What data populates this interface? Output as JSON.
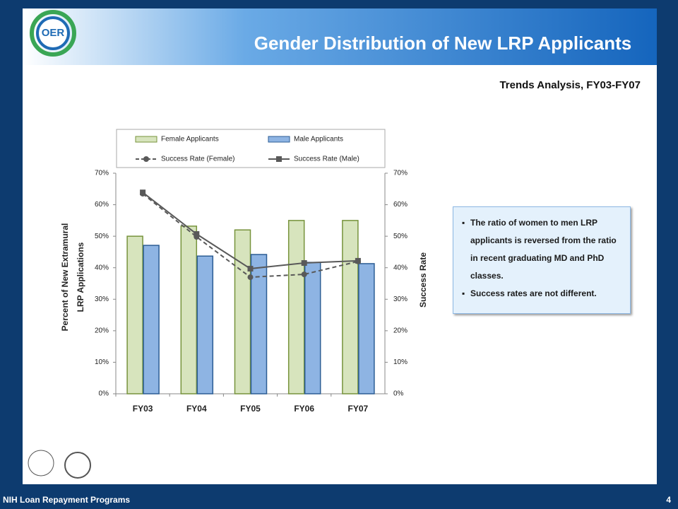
{
  "slide_title": "Gender Distribution of New LRP Applicants",
  "logo_text": "OER",
  "subtitle": "Trends Analysis,  FY03-FY07",
  "bullets": [
    "The ratio of women to men LRP applicants is reversed from the ratio in recent graduating MD and PhD classes.",
    "Success rates are not different."
  ],
  "footer": "NIH Loan Repayment Programs",
  "page_number": "4",
  "chart_data": {
    "type": "bar",
    "categories": [
      "FY03",
      "FY04",
      "FY05",
      "FY06",
      "FY07"
    ],
    "series": [
      {
        "name": "Female Applicants",
        "type": "bar",
        "color": "#d7e4bd",
        "edge": "#77933c",
        "values": [
          50,
          53.2,
          52,
          55,
          55
        ]
      },
      {
        "name": "Male Applicants",
        "type": "bar",
        "color": "#8eb4e3",
        "edge": "#2c5d94",
        "values": [
          47.1,
          43.7,
          44.2,
          41.7,
          41.3
        ]
      },
      {
        "name": "Success Rate (Female)",
        "type": "line",
        "axis": "y2",
        "color": "#595959",
        "dashed": true,
        "marker": "circle",
        "values": [
          63.5,
          49.8,
          37,
          37.9,
          42
        ]
      },
      {
        "name": "Success Rate (Male)",
        "type": "line",
        "axis": "y2",
        "color": "#595959",
        "dashed": false,
        "marker": "square",
        "values": [
          63.9,
          50.7,
          39.7,
          41.5,
          42.2
        ]
      }
    ],
    "ylabel": [
      "Percent of New Extramural",
      "LRP Applications"
    ],
    "y2label": "Success Rate",
    "ylim": [
      0,
      70
    ],
    "yticks": [
      {
        "value": 0,
        "label": "0%"
      },
      {
        "value": 10,
        "label": "10%"
      },
      {
        "value": 20,
        "label": "20%"
      },
      {
        "value": 30,
        "label": "30%"
      },
      {
        "value": 40,
        "label": "40%"
      },
      {
        "value": 50,
        "label": "50%"
      },
      {
        "value": 60,
        "label": "60%"
      },
      {
        "value": 70,
        "label": "70%"
      }
    ],
    "y2lim": [
      0,
      70
    ],
    "y2ticks": [
      {
        "value": 0,
        "label": "0%"
      },
      {
        "value": 10,
        "label": "10%"
      },
      {
        "value": 20,
        "label": "20%"
      },
      {
        "value": 30,
        "label": "30%"
      },
      {
        "value": 40,
        "label": "40%"
      },
      {
        "value": 50,
        "label": "50%"
      },
      {
        "value": 60,
        "label": "60%"
      },
      {
        "value": 70,
        "label": "70%"
      }
    ],
    "grid": false
  }
}
